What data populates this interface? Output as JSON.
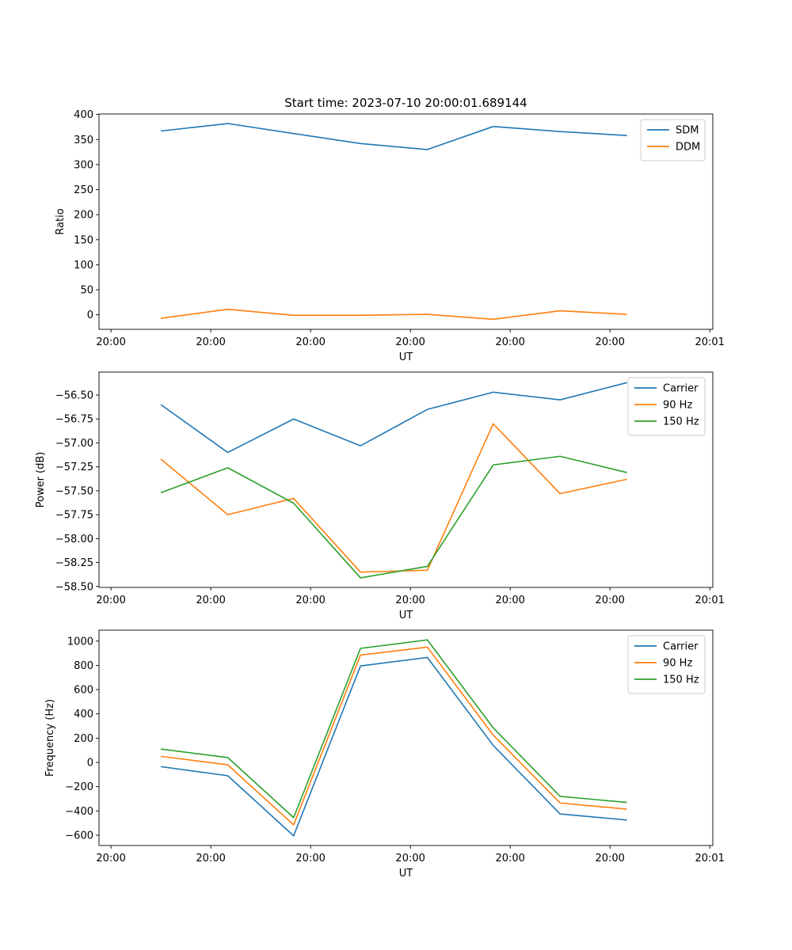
{
  "title": "Start time: 2023-07-10 20:00:01.689144",
  "chart_data": [
    {
      "type": "line",
      "title": "Start time: 2023-07-10 20:00:01.689144",
      "xlabel": "UT",
      "ylabel": "Ratio",
      "x": [
        0.5,
        1.17,
        1.83,
        2.5,
        3.17,
        3.83,
        4.5,
        5.17
      ],
      "xlim": [
        -0.12,
        6.03
      ],
      "xticks": [
        {
          "value": 0,
          "label": "20:00"
        },
        {
          "value": 1,
          "label": "20:00"
        },
        {
          "value": 2,
          "label": "20:00"
        },
        {
          "value": 3,
          "label": "20:00"
        },
        {
          "value": 4,
          "label": "20:00"
        },
        {
          "value": 5,
          "label": "20:00"
        },
        {
          "value": 6,
          "label": "20:01"
        }
      ],
      "ylim": [
        -29,
        401
      ],
      "yticks": [
        {
          "value": 0,
          "label": "0"
        },
        {
          "value": 50,
          "label": "50"
        },
        {
          "value": 100,
          "label": "100"
        },
        {
          "value": 150,
          "label": "150"
        },
        {
          "value": 200,
          "label": "200"
        },
        {
          "value": 250,
          "label": "250"
        },
        {
          "value": 300,
          "label": "300"
        },
        {
          "value": 350,
          "label": "350"
        },
        {
          "value": 400,
          "label": "400"
        }
      ],
      "legend_position": "upper right",
      "series": [
        {
          "name": "SDM",
          "color": "#1f77b4",
          "values": [
            367,
            382,
            362,
            342,
            330,
            376,
            366,
            358
          ]
        },
        {
          "name": "DDM",
          "color": "#ff7f0e",
          "values": [
            -7,
            11,
            -1,
            -1,
            1,
            -9,
            8,
            1
          ]
        }
      ]
    },
    {
      "type": "line",
      "title": "",
      "xlabel": "UT",
      "ylabel": "Power (dB)",
      "x": [
        0.5,
        1.17,
        1.83,
        2.5,
        3.17,
        3.83,
        4.5,
        5.17
      ],
      "xlim": [
        -0.12,
        6.03
      ],
      "xticks": [
        {
          "value": 0,
          "label": "20:00"
        },
        {
          "value": 1,
          "label": "20:00"
        },
        {
          "value": 2,
          "label": "20:00"
        },
        {
          "value": 3,
          "label": "20:00"
        },
        {
          "value": 4,
          "label": "20:00"
        },
        {
          "value": 5,
          "label": "20:00"
        },
        {
          "value": 6,
          "label": "20:01"
        }
      ],
      "ylim": [
        -58.51,
        -56.26
      ],
      "yticks": [
        {
          "value": -58.5,
          "label": "−58.50"
        },
        {
          "value": -58.25,
          "label": "−58.25"
        },
        {
          "value": -58.0,
          "label": "−58.00"
        },
        {
          "value": -57.75,
          "label": "−57.75"
        },
        {
          "value": -57.5,
          "label": "−57.50"
        },
        {
          "value": -57.25,
          "label": "−57.25"
        },
        {
          "value": -57.0,
          "label": "−57.00"
        },
        {
          "value": -56.75,
          "label": "−56.75"
        },
        {
          "value": -56.5,
          "label": "−56.50"
        }
      ],
      "legend_position": "upper right",
      "series": [
        {
          "name": "Carrier",
          "color": "#1f77b4",
          "values": [
            -56.6,
            -57.1,
            -56.75,
            -57.03,
            -56.65,
            -56.47,
            -56.55,
            -56.37
          ]
        },
        {
          "name": "90 Hz",
          "color": "#ff7f0e",
          "values": [
            -57.17,
            -57.75,
            -57.58,
            -58.35,
            -58.33,
            -56.8,
            -57.53,
            -57.38
          ]
        },
        {
          "name": "150 Hz",
          "color": "#2ca02c",
          "values": [
            -57.52,
            -57.26,
            -57.63,
            -58.41,
            -58.29,
            -57.23,
            -57.14,
            -57.31
          ]
        }
      ]
    },
    {
      "type": "line",
      "title": "",
      "xlabel": "UT",
      "ylabel": "Frequency (Hz)",
      "x": [
        0.5,
        1.17,
        1.83,
        2.5,
        3.17,
        3.83,
        4.5,
        5.17
      ],
      "xlim": [
        -0.12,
        6.03
      ],
      "xticks": [
        {
          "value": 0,
          "label": "20:00"
        },
        {
          "value": 1,
          "label": "20:00"
        },
        {
          "value": 2,
          "label": "20:00"
        },
        {
          "value": 3,
          "label": "20:00"
        },
        {
          "value": 4,
          "label": "20:00"
        },
        {
          "value": 5,
          "label": "20:00"
        },
        {
          "value": 6,
          "label": "20:01"
        }
      ],
      "ylim": [
        -685,
        1090
      ],
      "yticks": [
        {
          "value": -600,
          "label": "−600"
        },
        {
          "value": -400,
          "label": "−400"
        },
        {
          "value": -200,
          "label": "−200"
        },
        {
          "value": 0,
          "label": "0"
        },
        {
          "value": 200,
          "label": "200"
        },
        {
          "value": 400,
          "label": "400"
        },
        {
          "value": 600,
          "label": "600"
        },
        {
          "value": 800,
          "label": "800"
        },
        {
          "value": 1000,
          "label": "1000"
        }
      ],
      "legend_position": "upper right",
      "series": [
        {
          "name": "Carrier",
          "color": "#1f77b4",
          "values": [
            -35,
            -110,
            -605,
            795,
            865,
            140,
            -425,
            -475
          ]
        },
        {
          "name": "90 Hz",
          "color": "#ff7f0e",
          "values": [
            50,
            -20,
            -515,
            885,
            950,
            225,
            -335,
            -385
          ]
        },
        {
          "name": "150 Hz",
          "color": "#2ca02c",
          "values": [
            110,
            40,
            -455,
            940,
            1010,
            285,
            -280,
            -330
          ]
        }
      ]
    }
  ]
}
